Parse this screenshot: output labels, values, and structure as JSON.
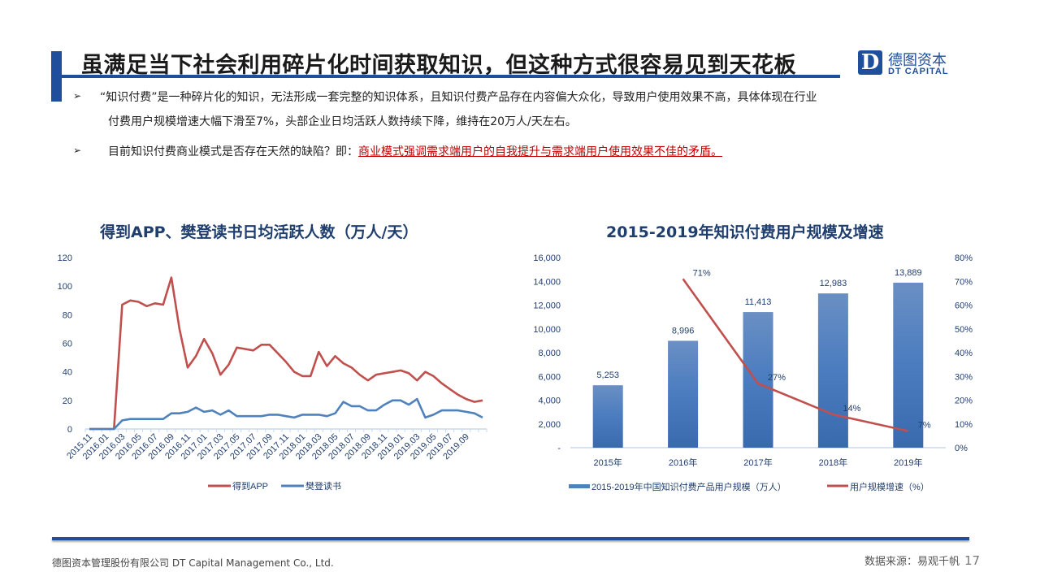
{
  "header": {
    "title": "虽满足当下社会利用碎片化时间获取知识，但这种方式很容易见到天花板",
    "logo_cn": "德图资本",
    "logo_en": "DT CAPITAL",
    "logo_letter": "D"
  },
  "bullets": [
    {
      "line1": " “知识付费”是一种碎片化的知识，无法形成一套完整的知识体系，且知识付费产品存在内容偏大众化，导致用户使用效果不高，具体体现在行业",
      "line2": "付费用户规模增速大幅下滑至7%，头部企业日均活跃人数持续下降，维持在20万人/天左右。"
    },
    {
      "prefix": "目前知识付费商业模式是否存在天然的缺陷？即：",
      "highlight": "商业模式强调需求端用户的自我提升与需求端用户使用效果不佳的矛盾。"
    }
  ],
  "bullet_icon": "arrow-bullet-icon",
  "colors": {
    "brand": "#1f4e9c",
    "red": "#c0504d",
    "blue": "#4f81bd",
    "title": "#1f3e6e"
  },
  "chart_data": [
    {
      "type": "line",
      "title": "得到APP、樊登读书日均活跃人数（万人/天）",
      "xlabel": "",
      "ylabel": "",
      "ylim": [
        0,
        120
      ],
      "yticks": [
        "0",
        "20",
        "40",
        "60",
        "80",
        "100",
        "120"
      ],
      "x": [
        "2015.11",
        "2015.12",
        "2016.01",
        "2016.02",
        "2016.03",
        "2016.04",
        "2016.05",
        "2016.06",
        "2016.07",
        "2016.08",
        "2016.09",
        "2016.10",
        "2016.11",
        "2016.12",
        "2017.01",
        "2017.02",
        "2017.03",
        "2017.04",
        "2017.05",
        "2017.06",
        "2017.07",
        "2017.08",
        "2017.09",
        "2017.10",
        "2017.11",
        "2017.12",
        "2018.01",
        "2018.02",
        "2018.03",
        "2018.04",
        "2018.05",
        "2018.06",
        "2018.07",
        "2018.08",
        "2018.09",
        "2018.10",
        "2018.11",
        "2018.12",
        "2019.01",
        "2019.02",
        "2019.03",
        "2019.04",
        "2019.05",
        "2019.06",
        "2019.07",
        "2019.08",
        "2019.09",
        "2019.10",
        "2019.11"
      ],
      "xtick_labels": [
        "2015.11",
        "2016.01",
        "2016.03",
        "2016.05",
        "2016.07",
        "2016.09",
        "2016.11",
        "2017.01",
        "2017.03",
        "2017.05",
        "2017.07",
        "2017.09",
        "2017.11",
        "2018.01",
        "2018.03",
        "2018.05",
        "2018.07",
        "2018.09",
        "2018.11",
        "2019.01",
        "2019.03",
        "2019.05",
        "2019.07",
        "2019.09"
      ],
      "series": [
        {
          "name": "得到APP",
          "color": "#c0504d",
          "values": [
            0,
            0,
            0,
            0,
            87,
            90,
            89,
            86,
            88,
            87,
            106,
            70,
            43,
            51,
            63,
            53,
            38,
            45,
            57,
            56,
            55,
            59,
            59,
            53,
            47,
            40,
            37,
            37,
            54,
            44,
            51,
            46,
            43,
            38,
            34,
            38,
            39,
            40,
            41,
            39,
            34,
            40,
            37,
            32,
            28,
            24,
            21,
            19,
            20
          ]
        },
        {
          "name": "樊登读书",
          "color": "#4f81bd",
          "values": [
            0,
            0,
            0,
            0,
            6,
            7,
            7,
            7,
            7,
            7,
            11,
            11,
            12,
            15,
            12,
            13,
            10,
            13,
            9,
            9,
            9,
            9,
            10,
            10,
            9,
            8,
            10,
            10,
            10,
            9,
            11,
            19,
            16,
            16,
            13,
            13,
            17,
            20,
            20,
            17,
            21,
            8,
            10,
            13,
            13,
            13,
            12,
            11,
            8
          ]
        }
      ],
      "legend": "bottom",
      "grid": false
    },
    {
      "type": "bar+line",
      "title": "2015-2019年知识付费用户规模及增速",
      "categories": [
        "2015年",
        "2016年",
        "2017年",
        "2018年",
        "2019年"
      ],
      "ylim": [
        0,
        16000
      ],
      "yticks": [
        "-",
        "2,000",
        "4,000",
        "6,000",
        "8,000",
        "10,000",
        "12,000",
        "14,000",
        "16,000"
      ],
      "y2lim": [
        0,
        80
      ],
      "y2ticks": [
        "0%",
        "10%",
        "20%",
        "30%",
        "40%",
        "50%",
        "60%",
        "70%",
        "80%"
      ],
      "series": [
        {
          "name": "2015-2019年中国知识付费产品用户规模（万人）",
          "type": "bar",
          "axis": "left",
          "color": "#4f81bd",
          "values": [
            5253,
            8996,
            11413,
            12983,
            13889
          ],
          "labels": [
            "5,253",
            "8,996",
            "11,413",
            "12,983",
            "13,889"
          ]
        },
        {
          "name": "用户规模增速（%）",
          "type": "line",
          "axis": "right",
          "color": "#c0504d",
          "values": [
            null,
            71,
            27,
            14,
            7
          ],
          "labels": [
            "",
            "71%",
            "27%",
            "14%",
            "7%"
          ]
        }
      ],
      "legend": "bottom",
      "grid": false
    }
  ],
  "footer": {
    "company": "德图资本管理股份有限公司  DT Capital Management  Co., Ltd.",
    "source": "数据来源：易观千帆",
    "page": "17"
  }
}
